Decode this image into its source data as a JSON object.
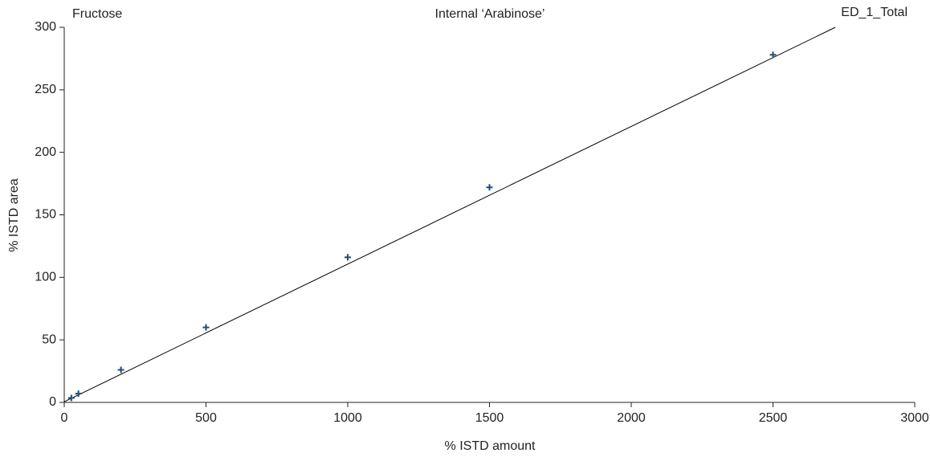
{
  "chart_data": {
    "type": "scatter",
    "title": "Internal ‘Arabinose’",
    "left_label": "Fructose",
    "right_label": "ED_1_Total",
    "x_label": "% ISTD amount",
    "y_label": "% ISTD area",
    "x": [
      25,
      50,
      200,
      500,
      1000,
      1500,
      2500
    ],
    "values": [
      3.5,
      7,
      26,
      60,
      116,
      172,
      278
    ],
    "color": "#1f4e79",
    "fit": {
      "x": [
        0,
        2720
      ],
      "y": [
        0.5,
        300
      ],
      "color": "#000000"
    },
    "xlim": [
      0,
      3000
    ],
    "xticks": [
      0,
      500,
      1000,
      1500,
      2000,
      2500,
      3000
    ],
    "ylim": [
      0,
      300
    ],
    "yticks": [
      0,
      50,
      100,
      150,
      200,
      250,
      300
    ],
    "grid": false
  }
}
